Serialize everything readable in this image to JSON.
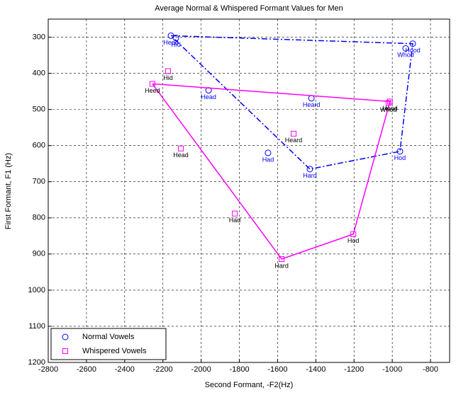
{
  "chart_data": {
    "type": "scatter",
    "title": "Average Normal & Whispered Formant Values for Men",
    "x_label": "Second Formant, -F2(Hz)",
    "y_label": "First Formant, F1 (Hz)",
    "xlim": [
      -2800,
      -700
    ],
    "xticks": [
      -2800,
      -2600,
      -2400,
      -2200,
      -2000,
      -1800,
      -1600,
      -1400,
      -1200,
      -1000,
      -800
    ],
    "ylim": [
      1200,
      250
    ],
    "yticks": [
      300,
      400,
      500,
      600,
      700,
      800,
      900,
      1000,
      1100,
      1200
    ],
    "grid": true,
    "legend": "lower left",
    "series": [
      {
        "name": "Normal Vowels",
        "color": "#0000ff",
        "marker": "circle",
        "labels": [
          "Heed",
          "Hid",
          "Head",
          "Had",
          "Hard",
          "Hod",
          "Hood",
          "Whod",
          "Heard"
        ],
        "x": [
          -2158,
          -2132,
          -1961,
          -1650,
          -1431,
          -960,
          -893,
          -930,
          -1423
        ],
        "y": [
          296,
          302,
          447,
          620,
          665,
          616,
          318,
          331,
          469
        ]
      },
      {
        "name": "Whispered Vowels",
        "color": "#ff00ff",
        "marker": "square",
        "labels": [
          "Heed",
          "Hid",
          "Head",
          "Had",
          "Hard",
          "Hod",
          "Hood",
          "Whod",
          "Heard"
        ],
        "x": [
          -2255,
          -2173,
          -2106,
          -1824,
          -1579,
          -1204,
          -1012,
          -1020,
          -1516
        ],
        "y": [
          429,
          394,
          608,
          788,
          914,
          845,
          478,
          482,
          567
        ]
      }
    ]
  }
}
